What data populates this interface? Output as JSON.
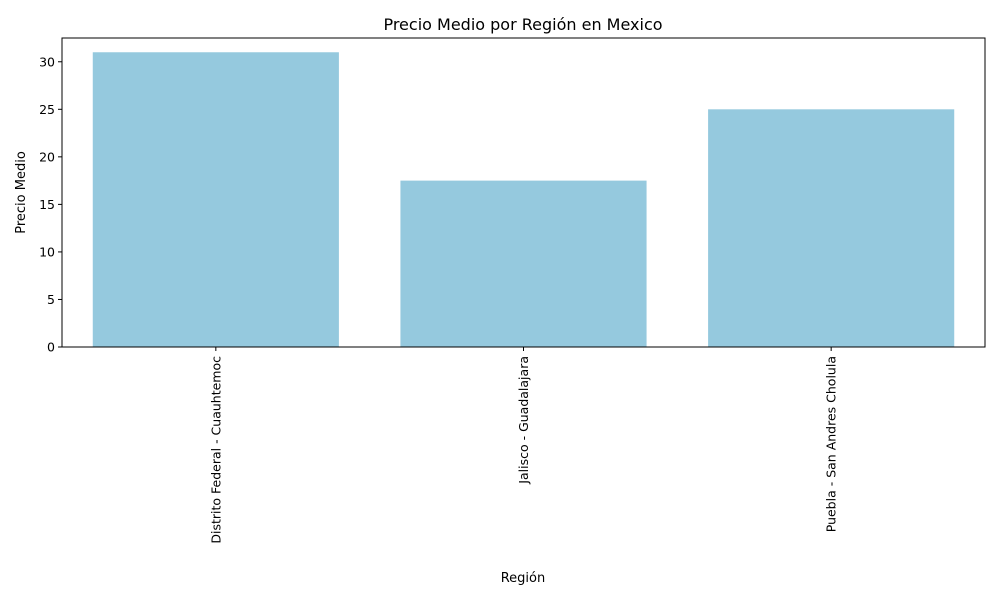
{
  "chart_data": {
    "type": "bar",
    "title": "Precio Medio por Región en Mexico",
    "xlabel": "Región",
    "ylabel": "Precio Medio",
    "categories": [
      "Distrito Federal - Cuauhtemoc",
      "Jalisco - Guadalajara",
      "Puebla - San Andres Cholula"
    ],
    "values": [
      31,
      17.5,
      25
    ],
    "ylim": [
      0,
      32.5
    ],
    "yticks": [
      0,
      5,
      10,
      15,
      20,
      25,
      30
    ],
    "grid": false,
    "bar_color": "#95c9de",
    "xtick_rotation": "vertical"
  }
}
